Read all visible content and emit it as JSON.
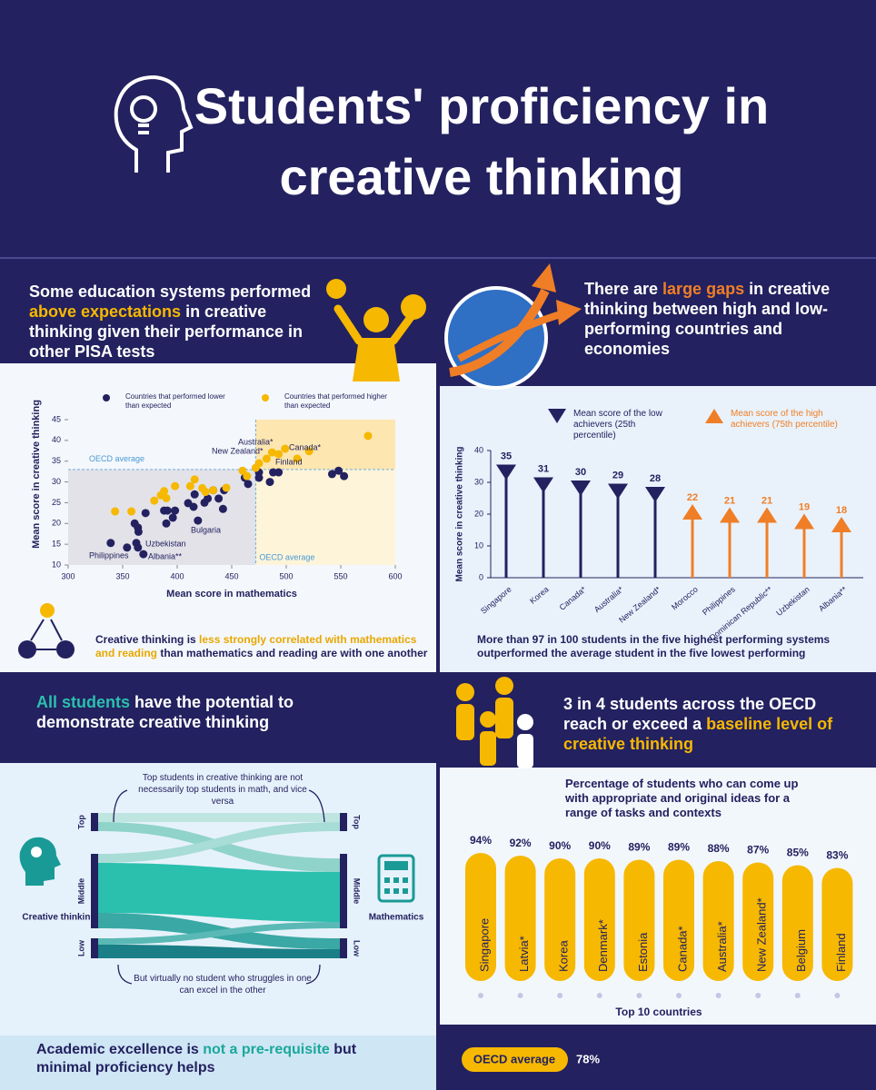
{
  "header": {
    "title": "Students' proficiency in creative thinking"
  },
  "panels": [
    {
      "heading": [
        "Some education systems performed ",
        "above expectations",
        " in creative thinking given their performance in other PISA tests"
      ],
      "note": [
        "Creative thinking is ",
        "less strongly correlated with mathematics and reading",
        " than mathematics and reading are with one another"
      ]
    },
    {
      "heading": [
        "There are ",
        "large gaps",
        " in creative thinking between high and low-performing countries and economies"
      ],
      "note": "More than 97 in 100 students in the five highest performing systems outperformed the average student in the five lowest performing"
    },
    {
      "heading": [
        "All students",
        " have the potential to demonstrate creative thinking"
      ],
      "sankey": {
        "left_label": "Creative thinking",
        "right_label": "Mathematics",
        "levels": [
          "Top",
          "Middle",
          "Low"
        ],
        "top_note": "Top students in creative thinking are not necessarily top students in math, and vice versa",
        "bottom_note": "But virtually no student who struggles in one can excel in the other"
      },
      "note": [
        "Academic excellence is ",
        "not a pre-requisite",
        " but minimal proficiency helps"
      ]
    },
    {
      "heading": [
        "3 in 4 students across the OECD reach or exceed a ",
        "baseline level of creative thinking"
      ],
      "oecd_average": {
        "label": "OECD average",
        "value": "78%"
      }
    }
  ],
  "chart_data": [
    {
      "type": "scatter",
      "xlabel": "Mean score in mathematics",
      "ylabel": "Mean score in creative thinking",
      "xlim": [
        300,
        600
      ],
      "xticks": [
        300,
        350,
        400,
        450,
        500,
        550,
        600
      ],
      "ylim": [
        10,
        45
      ],
      "yticks": [
        10,
        15,
        20,
        25,
        30,
        35,
        40,
        45
      ],
      "oecd_average": {
        "label": "OECD average",
        "x": 472,
        "y": 33
      },
      "series": [
        {
          "name": "Countries that performed lower than expected",
          "color": "#23215f",
          "x": [
            339,
            354,
            361,
            364,
            364.5,
            362.5,
            364,
            369,
            371,
            388,
            391,
            390,
            396,
            398,
            410,
            415,
            419,
            416,
            425,
            428,
            433,
            438,
            442,
            443,
            462,
            465,
            475,
            475,
            485,
            488,
            493,
            542,
            548,
            553
          ],
          "y": [
            15.3,
            14.2,
            20,
            19,
            18,
            15.3,
            14.2,
            12.6,
            22.5,
            23.1,
            23.1,
            20,
            21.4,
            23.1,
            24.9,
            24,
            20.7,
            27,
            25,
            26,
            28,
            26,
            23.5,
            28,
            31,
            29.5,
            31,
            32.3,
            30,
            32.3,
            32.3,
            31.9,
            32.7,
            31.4
          ]
        },
        {
          "name": "Countries that performed higher than expected",
          "color": "#f6b800",
          "x": [
            343,
            358,
            379,
            385,
            390,
            388,
            398,
            412,
            416,
            423,
            426,
            433,
            445,
            460,
            464,
            472,
            475,
            482,
            487,
            493,
            499,
            510,
            521,
            575
          ],
          "y": [
            22.9,
            22.9,
            25.5,
            26.8,
            26.1,
            27.8,
            29,
            29,
            30.6,
            28.5,
            27.6,
            28,
            28.6,
            32.7,
            31.4,
            33.4,
            34.5,
            35.6,
            37.1,
            36.7,
            38,
            35.6,
            37.4,
            41.1
          ]
        }
      ],
      "annotations": [
        "Australia*",
        "New Zealand*",
        "Canada*",
        "Finland",
        "Bulgaria",
        "Uzbekistan",
        "Philippines",
        "Albania**"
      ]
    },
    {
      "type": "lollipop",
      "ylabel": "Mean score in creative thinking",
      "ylim": [
        0,
        40
      ],
      "yticks": [
        0,
        10,
        20,
        30,
        40
      ],
      "categories": [
        "Singapore",
        "Korea",
        "Canada*",
        "Australia*",
        "New Zealand*",
        "Morocco",
        "Philippines",
        "Dominican Republic**",
        "Uzbekistan",
        "Albania**"
      ],
      "series": [
        {
          "name": "Mean score of the low achievers (25th percentile)",
          "color": "#23215f",
          "marker": "down",
          "values": [
            35,
            31,
            30,
            29,
            28,
            null,
            null,
            null,
            null,
            null
          ]
        },
        {
          "name": "Mean score of the high achievers (75th percentile)",
          "color": "#f07e26",
          "marker": "up",
          "values": [
            null,
            null,
            null,
            null,
            null,
            22,
            21,
            21,
            19,
            18
          ]
        }
      ]
    },
    {
      "type": "bar",
      "title": "Percentage of students who can come up with appropriate and original ideas for a range of tasks and contexts",
      "xlabel": "Top 10 countries",
      "color": "#f6b800",
      "categories": [
        "Singapore",
        "Latvia*",
        "Korea",
        "Denmark*",
        "Estonia",
        "Canada*",
        "Australia*",
        "New Zealand*",
        "Belgium",
        "Finland"
      ],
      "values": [
        94,
        92,
        90,
        90,
        89,
        89,
        88,
        87,
        85,
        83
      ],
      "value_labels": [
        "94%",
        "92%",
        "90%",
        "90%",
        "89%",
        "89%",
        "88%",
        "87%",
        "85%",
        "83%"
      ]
    }
  ]
}
